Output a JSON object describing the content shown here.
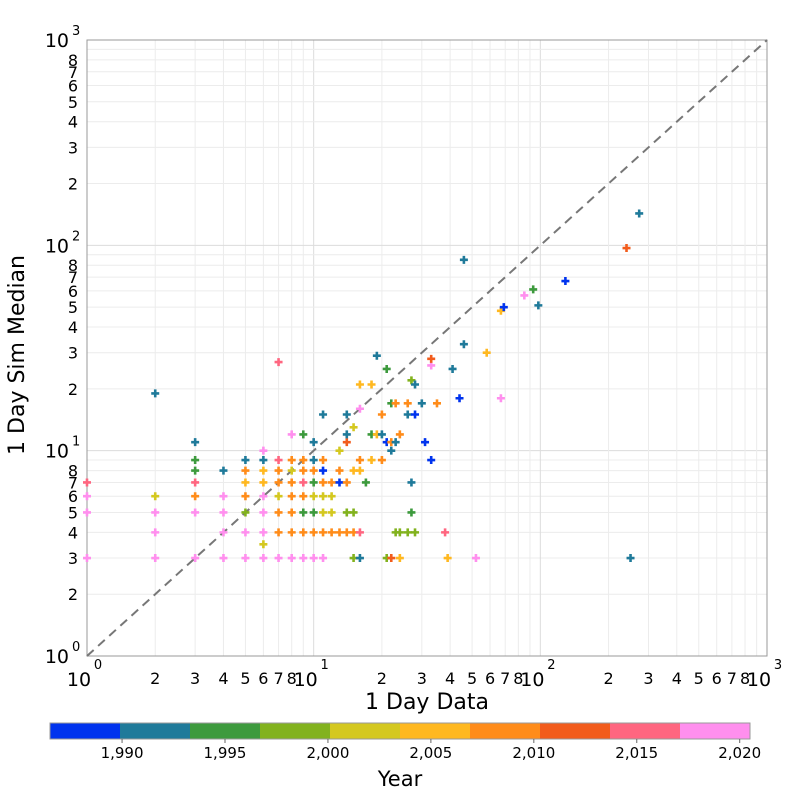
{
  "chart_data": {
    "type": "scatter",
    "x_scale": "log",
    "y_scale": "log",
    "xlim": [
      1,
      1000
    ],
    "ylim": [
      1,
      1000
    ],
    "xlabel": "1 Day Data",
    "ylabel": "1 Day Sim Median",
    "grid": true,
    "marker": "plus",
    "reference_line": {
      "style": "dashed",
      "color": "#777777",
      "from": [
        1,
        1
      ],
      "to": [
        1000,
        1000
      ]
    },
    "major_ticks": [
      {
        "value": 1,
        "base": "10",
        "exp": "0"
      },
      {
        "value": 10,
        "base": "10",
        "exp": "1"
      },
      {
        "value": 100,
        "base": "10",
        "exp": "2"
      },
      {
        "value": 1000,
        "base": "10",
        "exp": "3"
      }
    ],
    "minor_tick_labels": [
      {
        "value": 2,
        "label": "2"
      },
      {
        "value": 3,
        "label": "3"
      },
      {
        "value": 4,
        "label": "4"
      },
      {
        "value": 5,
        "label": "5"
      },
      {
        "value": 6,
        "label": "6"
      },
      {
        "value": 7,
        "label": "7"
      },
      {
        "value": 8,
        "label": "8"
      },
      {
        "value": 20,
        "label": "2"
      },
      {
        "value": 30,
        "label": "3"
      },
      {
        "value": 40,
        "label": "4"
      },
      {
        "value": 50,
        "label": "5"
      },
      {
        "value": 60,
        "label": "6"
      },
      {
        "value": 70,
        "label": "7"
      },
      {
        "value": 80,
        "label": "8"
      },
      {
        "value": 200,
        "label": "2"
      },
      {
        "value": 300,
        "label": "3"
      },
      {
        "value": 400,
        "label": "4"
      },
      {
        "value": 500,
        "label": "5"
      },
      {
        "value": 600,
        "label": "6"
      },
      {
        "value": 700,
        "label": "7"
      },
      {
        "value": 800,
        "label": "8"
      }
    ],
    "colorbar": {
      "title": "Year",
      "range": [
        1986.5,
        2020.5
      ],
      "bands": [
        "#0033ee",
        "#1f7a9a",
        "#3d9a3d",
        "#82b21e",
        "#d4c820",
        "#ffb820",
        "#ff8c1a",
        "#f25c1c",
        "#ff6680",
        "#ff8fee"
      ],
      "ticks": [
        {
          "value": 1990,
          "label": "1,990"
        },
        {
          "value": 1995,
          "label": "1,995"
        },
        {
          "value": 2000,
          "label": "2,000"
        },
        {
          "value": 2005,
          "label": "2,005"
        },
        {
          "value": 2010,
          "label": "2,010"
        },
        {
          "value": 2015,
          "label": "2,015"
        },
        {
          "value": 2020,
          "label": "2,020"
        }
      ]
    },
    "points": [
      {
        "x": 1,
        "y": 3,
        "year": 2020
      },
      {
        "x": 1,
        "y": 5,
        "year": 2019
      },
      {
        "x": 1,
        "y": 6,
        "year": 2020
      },
      {
        "x": 1,
        "y": 7,
        "year": 2016
      },
      {
        "x": 2,
        "y": 3,
        "year": 2019
      },
      {
        "x": 2,
        "y": 4,
        "year": 2019
      },
      {
        "x": 2,
        "y": 5,
        "year": 2019
      },
      {
        "x": 2,
        "y": 6,
        "year": 2002
      },
      {
        "x": 2,
        "y": 19,
        "year": 1991
      },
      {
        "x": 3,
        "y": 3,
        "year": 2019
      },
      {
        "x": 3,
        "y": 5,
        "year": 2019
      },
      {
        "x": 3,
        "y": 6,
        "year": 2009
      },
      {
        "x": 3,
        "y": 7,
        "year": 2014
      },
      {
        "x": 3,
        "y": 8,
        "year": 1994
      },
      {
        "x": 3,
        "y": 9,
        "year": 1994
      },
      {
        "x": 3,
        "y": 11,
        "year": 1991
      },
      {
        "x": 4,
        "y": 3,
        "year": 2019
      },
      {
        "x": 4,
        "y": 4,
        "year": 2019
      },
      {
        "x": 4,
        "y": 5,
        "year": 2019
      },
      {
        "x": 4,
        "y": 6,
        "year": 2019
      },
      {
        "x": 4,
        "y": 8,
        "year": 1991
      },
      {
        "x": 5,
        "y": 3,
        "year": 2019
      },
      {
        "x": 5,
        "y": 4,
        "year": 2019
      },
      {
        "x": 5,
        "y": 5,
        "year": 1998
      },
      {
        "x": 5,
        "y": 6,
        "year": 2010
      },
      {
        "x": 5,
        "y": 7,
        "year": 2005
      },
      {
        "x": 5,
        "y": 8,
        "year": 2010
      },
      {
        "x": 5,
        "y": 9,
        "year": 1991
      },
      {
        "x": 6,
        "y": 3,
        "year": 2019
      },
      {
        "x": 6,
        "y": 3.5,
        "year": 2002
      },
      {
        "x": 6,
        "y": 4,
        "year": 2019
      },
      {
        "x": 6,
        "y": 5,
        "year": 2019
      },
      {
        "x": 6,
        "y": 6,
        "year": 2019
      },
      {
        "x": 6,
        "y": 7,
        "year": 2005
      },
      {
        "x": 6,
        "y": 8,
        "year": 2004
      },
      {
        "x": 6,
        "y": 9,
        "year": 1991
      },
      {
        "x": 6,
        "y": 10,
        "year": 2019
      },
      {
        "x": 7,
        "y": 3,
        "year": 2019
      },
      {
        "x": 7,
        "y": 4,
        "year": 2010
      },
      {
        "x": 7,
        "y": 5,
        "year": 2010
      },
      {
        "x": 7,
        "y": 6,
        "year": 2002
      },
      {
        "x": 7,
        "y": 7,
        "year": 2010
      },
      {
        "x": 7,
        "y": 8,
        "year": 2010
      },
      {
        "x": 7,
        "y": 9,
        "year": 2016
      },
      {
        "x": 7,
        "y": 27,
        "year": 2016
      },
      {
        "x": 8,
        "y": 3,
        "year": 2019
      },
      {
        "x": 8,
        "y": 4,
        "year": 2010
      },
      {
        "x": 8,
        "y": 5,
        "year": 2010
      },
      {
        "x": 8,
        "y": 6,
        "year": 2010
      },
      {
        "x": 8,
        "y": 7,
        "year": 2010
      },
      {
        "x": 8,
        "y": 8,
        "year": 2002
      },
      {
        "x": 8,
        "y": 9,
        "year": 2010
      },
      {
        "x": 8,
        "y": 12,
        "year": 2019
      },
      {
        "x": 9,
        "y": 3,
        "year": 2019
      },
      {
        "x": 9,
        "y": 4,
        "year": 2010
      },
      {
        "x": 9,
        "y": 5,
        "year": 1996
      },
      {
        "x": 9,
        "y": 6,
        "year": 2010
      },
      {
        "x": 9,
        "y": 7,
        "year": 2016
      },
      {
        "x": 9,
        "y": 8,
        "year": 2010
      },
      {
        "x": 9,
        "y": 9,
        "year": 2010
      },
      {
        "x": 9,
        "y": 12,
        "year": 1994
      },
      {
        "x": 10,
        "y": 3,
        "year": 2019
      },
      {
        "x": 10,
        "y": 4,
        "year": 2010
      },
      {
        "x": 10,
        "y": 5,
        "year": 1994
      },
      {
        "x": 10,
        "y": 6,
        "year": 2002
      },
      {
        "x": 10,
        "y": 7,
        "year": 1994
      },
      {
        "x": 10,
        "y": 8,
        "year": 2010
      },
      {
        "x": 10,
        "y": 9,
        "year": 1991
      },
      {
        "x": 10,
        "y": 11,
        "year": 1991
      },
      {
        "x": 11,
        "y": 3,
        "year": 2019
      },
      {
        "x": 11,
        "y": 4,
        "year": 2010
      },
      {
        "x": 11,
        "y": 5,
        "year": 2002
      },
      {
        "x": 11,
        "y": 6,
        "year": 2002
      },
      {
        "x": 11,
        "y": 7,
        "year": 2010
      },
      {
        "x": 11,
        "y": 8,
        "year": 1988
      },
      {
        "x": 11,
        "y": 9,
        "year": 2010
      },
      {
        "x": 11,
        "y": 15,
        "year": 1991
      },
      {
        "x": 12,
        "y": 4,
        "year": 2010
      },
      {
        "x": 12,
        "y": 5,
        "year": 2002
      },
      {
        "x": 12,
        "y": 6,
        "year": 2002
      },
      {
        "x": 12,
        "y": 7,
        "year": 2010
      },
      {
        "x": 13,
        "y": 4,
        "year": 2010
      },
      {
        "x": 13,
        "y": 7,
        "year": 1988
      },
      {
        "x": 13,
        "y": 8,
        "year": 2010
      },
      {
        "x": 13,
        "y": 10,
        "year": 2002
      },
      {
        "x": 14,
        "y": 4,
        "year": 2010
      },
      {
        "x": 14,
        "y": 5,
        "year": 1998
      },
      {
        "x": 14,
        "y": 7,
        "year": 2010
      },
      {
        "x": 14,
        "y": 11,
        "year": 2012
      },
      {
        "x": 14,
        "y": 12,
        "year": 1991
      },
      {
        "x": 14,
        "y": 15,
        "year": 1991
      },
      {
        "x": 15,
        "y": 3,
        "year": 1998
      },
      {
        "x": 15,
        "y": 4,
        "year": 2010
      },
      {
        "x": 15,
        "y": 5,
        "year": 1998
      },
      {
        "x": 15,
        "y": 8,
        "year": 2004
      },
      {
        "x": 15,
        "y": 13,
        "year": 2002
      },
      {
        "x": 16,
        "y": 3,
        "year": 1991
      },
      {
        "x": 16,
        "y": 4,
        "year": 2016
      },
      {
        "x": 16,
        "y": 8,
        "year": 2004
      },
      {
        "x": 16,
        "y": 9,
        "year": 2010
      },
      {
        "x": 16,
        "y": 16,
        "year": 2019
      },
      {
        "x": 16,
        "y": 21,
        "year": 2004
      },
      {
        "x": 17,
        "y": 7,
        "year": 1994
      },
      {
        "x": 18,
        "y": 9,
        "year": 2004
      },
      {
        "x": 18,
        "y": 12,
        "year": 1994
      },
      {
        "x": 18,
        "y": 21,
        "year": 2004
      },
      {
        "x": 19,
        "y": 12,
        "year": 2004
      },
      {
        "x": 19,
        "y": 29,
        "year": 1991
      },
      {
        "x": 20,
        "y": 9,
        "year": 2010
      },
      {
        "x": 20,
        "y": 12,
        "year": 1991
      },
      {
        "x": 20,
        "y": 15,
        "year": 2010
      },
      {
        "x": 21,
        "y": 3,
        "year": 1998
      },
      {
        "x": 21,
        "y": 11,
        "year": 1988
      },
      {
        "x": 21,
        "y": 25,
        "year": 1996
      },
      {
        "x": 22,
        "y": 3,
        "year": 2012
      },
      {
        "x": 22,
        "y": 10,
        "year": 1991
      },
      {
        "x": 22,
        "y": 11,
        "year": 2010
      },
      {
        "x": 22,
        "y": 17,
        "year": 1996
      },
      {
        "x": 23,
        "y": 4,
        "year": 1998
      },
      {
        "x": 23,
        "y": 11,
        "year": 1991
      },
      {
        "x": 23,
        "y": 17,
        "year": 2010
      },
      {
        "x": 24,
        "y": 3,
        "year": 2004
      },
      {
        "x": 24,
        "y": 4,
        "year": 2000
      },
      {
        "x": 24,
        "y": 12,
        "year": 2010
      },
      {
        "x": 26,
        "y": 4,
        "year": 2000
      },
      {
        "x": 26,
        "y": 15,
        "year": 1991
      },
      {
        "x": 26,
        "y": 17,
        "year": 2010
      },
      {
        "x": 27,
        "y": 5,
        "year": 1996
      },
      {
        "x": 27,
        "y": 7,
        "year": 1991
      },
      {
        "x": 27,
        "y": 22,
        "year": 1998
      },
      {
        "x": 28,
        "y": 4,
        "year": 2000
      },
      {
        "x": 28,
        "y": 15,
        "year": 1988
      },
      {
        "x": 28,
        "y": 21,
        "year": 1991
      },
      {
        "x": 30,
        "y": 17,
        "year": 1991
      },
      {
        "x": 31,
        "y": 11,
        "year": 1988
      },
      {
        "x": 33,
        "y": 9,
        "year": 1988
      },
      {
        "x": 33,
        "y": 26,
        "year": 2019
      },
      {
        "x": 33,
        "y": 28,
        "year": 2012
      },
      {
        "x": 35,
        "y": 17,
        "year": 2010
      },
      {
        "x": 38,
        "y": 4,
        "year": 2016
      },
      {
        "x": 39,
        "y": 3,
        "year": 2004
      },
      {
        "x": 41,
        "y": 25,
        "year": 1991
      },
      {
        "x": 44,
        "y": 18,
        "year": 1988
      },
      {
        "x": 46,
        "y": 33,
        "year": 1991
      },
      {
        "x": 46,
        "y": 85,
        "year": 1991
      },
      {
        "x": 52,
        "y": 3,
        "year": 2019
      },
      {
        "x": 58,
        "y": 30,
        "year": 2004
      },
      {
        "x": 67,
        "y": 18,
        "year": 2019
      },
      {
        "x": 67,
        "y": 48,
        "year": 2004
      },
      {
        "x": 69,
        "y": 50,
        "year": 1988
      },
      {
        "x": 85,
        "y": 57,
        "year": 2019
      },
      {
        "x": 93,
        "y": 61,
        "year": 1994
      },
      {
        "x": 98,
        "y": 51,
        "year": 1991
      },
      {
        "x": 129,
        "y": 67,
        "year": 1988
      },
      {
        "x": 240,
        "y": 97,
        "year": 2012
      },
      {
        "x": 250,
        "y": 3,
        "year": 1991
      },
      {
        "x": 273,
        "y": 143,
        "year": 1991
      }
    ]
  }
}
